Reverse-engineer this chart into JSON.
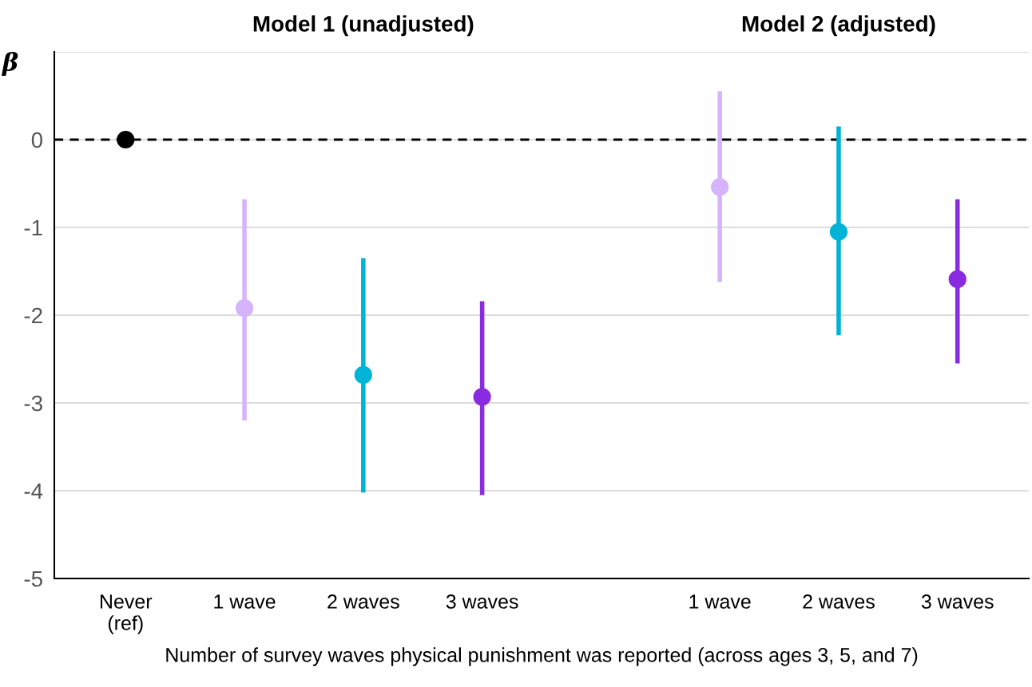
{
  "chart_data": {
    "type": "scatter",
    "categories": [
      "Never\n(ref)",
      "1 wave",
      "2 waves",
      "3 waves",
      null,
      "1 wave",
      "2 waves",
      "3 waves"
    ],
    "values": [
      0,
      -1.92,
      -2.68,
      -2.93,
      null,
      -0.54,
      -1.05,
      -1.59
    ],
    "errors": [
      null,
      [
        -3.2,
        -0.68
      ],
      [
        -4.02,
        -1.35
      ],
      [
        -4.05,
        -1.84
      ],
      null,
      [
        -1.62,
        0.55
      ],
      [
        -2.23,
        0.15
      ],
      [
        -2.55,
        -0.68
      ]
    ],
    "colors": [
      "#000000",
      "#d5b4fb",
      "#00b4d8",
      "#8a2be2",
      null,
      "#d5b4fb",
      "#00b4d8",
      "#8a2be2"
    ],
    "annotations": [
      "Model 1 (unadjusted)",
      "Model 2 (adjusted)"
    ],
    "ylabel": "β",
    "xlabel": "Number of survey waves physical punishment was reported (across ages 3, 5, and 7)",
    "ylim": [
      -5,
      1
    ],
    "yticks": [
      -5,
      -4,
      -3,
      -2,
      -1,
      0,
      {
        "value": 1,
        "label": null
      }
    ],
    "ref_lines": [
      {
        "axis": "y",
        "value": 0,
        "color": "#000000",
        "line_style": "dashed"
      }
    ],
    "grid": "y",
    "marker": "circle"
  }
}
